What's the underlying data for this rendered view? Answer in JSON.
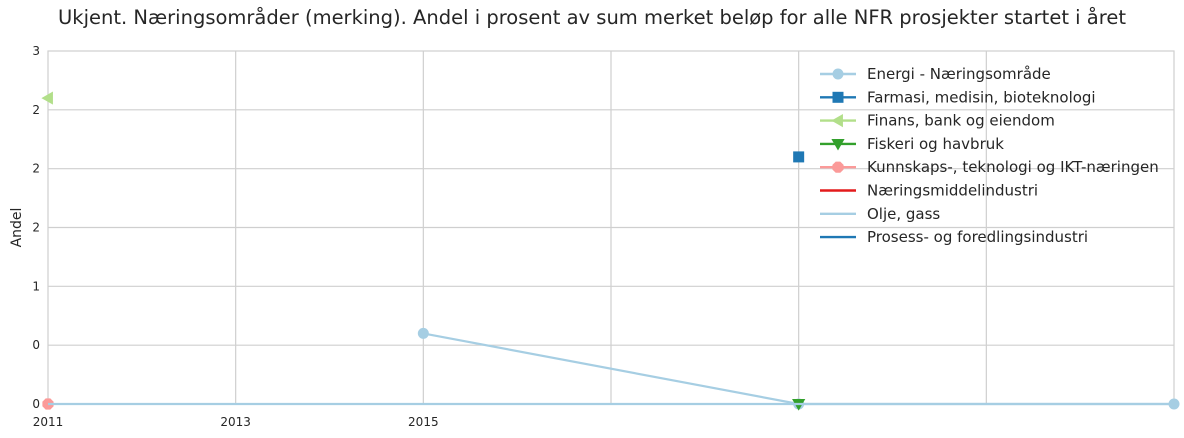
{
  "chart_data": {
    "type": "line",
    "title": "Ukjent. Næringsområder (merking). Andel i prosent av sum merket beløp for alle NFR prosjekter startet i året",
    "xlabel": "",
    "ylabel": "Andel",
    "x_ticks": [
      "2011",
      "2013",
      "2015"
    ],
    "y_ticks": [
      "0",
      "0",
      "1",
      "2",
      "2",
      "2",
      "3"
    ],
    "xlim": [
      2011,
      2023
    ],
    "ylim": [
      0,
      3
    ],
    "grid": true,
    "legend_position": "top-right",
    "series": [
      {
        "name": "Energi - Næringsområde",
        "color": "#a6cee3",
        "marker": "circle",
        "points": [
          [
            2015,
            0.6
          ],
          [
            2019,
            0.0
          ],
          [
            2023,
            0.0
          ]
        ]
      },
      {
        "name": "Farmasi, medisin, bioteknologi",
        "color": "#1f78b4",
        "marker": "square",
        "points": [
          [
            2019,
            2.1
          ]
        ]
      },
      {
        "name": "Finans, bank og eiendom",
        "color": "#b2df8a",
        "marker": "triangle-left",
        "points": [
          [
            2011,
            2.6
          ]
        ]
      },
      {
        "name": "Fiskeri og havbruk",
        "color": "#33a02c",
        "marker": "triangle-down",
        "points": [
          [
            2019,
            0.0
          ]
        ]
      },
      {
        "name": "Kunnskaps-, teknologi og IKT-næringen",
        "color": "#fb9a99",
        "marker": "octagon",
        "points": [
          [
            2011,
            0.0
          ]
        ]
      },
      {
        "name": "Næringsmiddelindustri",
        "color": "#e31a1c",
        "marker": "none",
        "points": []
      },
      {
        "name": "Olje, gass",
        "color": "#a6cee3",
        "marker": "none",
        "points": [
          [
            2011,
            0.0
          ],
          [
            2023,
            0.0
          ]
        ]
      },
      {
        "name": "Prosess- og foredlingsindustri",
        "color": "#1f78b4",
        "marker": "none",
        "points": []
      }
    ]
  }
}
